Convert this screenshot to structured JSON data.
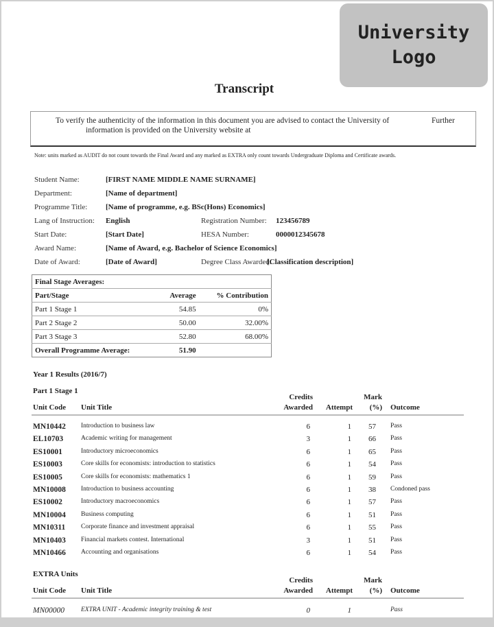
{
  "logo": {
    "line1": "University",
    "line2": "Logo"
  },
  "title": "Transcript",
  "verify": {
    "line1": "To verify the authenticity of the information in this document you are advised to contact the University of",
    "further": "Further",
    "line2": "information is provided on the University website at"
  },
  "note": "Note: units marked as AUDIT do not count towards the Final Award and any marked as EXTRA only count towards Undergraduate Diploma and Certificate awards.",
  "student": {
    "name_label": "Student Name:",
    "name": "[FIRST NAME MIDDLE NAME SURNAME]",
    "dept_label": "Department:",
    "dept": "[Name of department]",
    "prog_label": "Programme Title:",
    "prog": "[Name of programme, e.g. BSc(Hons) Economics]",
    "lang_label": "Lang of Instruction:",
    "lang": "English",
    "reg_label": "Registration Number:",
    "reg": "123456789",
    "start_label": "Start Date:",
    "start": "[Start Date]",
    "hesa_label": "HESA Number:",
    "hesa": "0000012345678",
    "award_label": "Award Name:",
    "award": "[Name of Award, e.g. Bachelor of Science Economics]",
    "date_label": "Date of Award:",
    "date": "[Date of Award]",
    "class_label": "Degree Class Awarded:",
    "class": "[Classification description]"
  },
  "averages": {
    "heading": "Final Stage Averages:",
    "headers": [
      "Part/Stage",
      "Average",
      "% Contribution"
    ],
    "rows": [
      [
        "Part 1 Stage 1",
        "54.85",
        "0%"
      ],
      [
        "Part 2 Stage 2",
        "50.00",
        "32.00%"
      ],
      [
        "Part 3 Stage 3",
        "52.80",
        "68.00%"
      ]
    ],
    "overall_label": "Overall Programme Average:",
    "overall": "51.90"
  },
  "year_heading": "Year  1 Results (2016/7)",
  "headers": {
    "code": "Unit Code",
    "title": "Unit Title",
    "credits1": "Credits",
    "credits2": "Awarded",
    "attempt": "Attempt",
    "mark1": "Mark",
    "mark2": "(%)",
    "outcome": "Outcome"
  },
  "stage1": {
    "heading": "Part 1 Stage 1",
    "units": [
      [
        "MN10442",
        "Introduction to business law",
        "6",
        "1",
        "57",
        "Pass"
      ],
      [
        "EL10703",
        "Academic writing for management",
        "3",
        "1",
        "66",
        "Pass"
      ],
      [
        "ES10001",
        "Introductory microeconomics",
        "6",
        "1",
        "65",
        "Pass"
      ],
      [
        "ES10003",
        "Core skills for economists: introduction to statistics",
        "6",
        "1",
        "54",
        "Pass"
      ],
      [
        "ES10005",
        "Core skills for economists: mathematics 1",
        "6",
        "1",
        "59",
        "Pass"
      ],
      [
        "MN10008",
        "Introduction to business accounting",
        "6",
        "1",
        "38",
        "Condoned pass"
      ],
      [
        "ES10002",
        "Introductory macroeconomics",
        "6",
        "1",
        "57",
        "Pass"
      ],
      [
        "MN10004",
        "Business computing",
        "6",
        "1",
        "51",
        "Pass"
      ],
      [
        "MN10311",
        "Corporate finance and investment appraisal",
        "6",
        "1",
        "55",
        "Pass"
      ],
      [
        "MN10403",
        "Financial markets contest. International",
        "3",
        "1",
        "51",
        "Pass"
      ],
      [
        "MN10466",
        "Accounting and organisations",
        "6",
        "1",
        "54",
        "Pass"
      ]
    ]
  },
  "extra": {
    "heading": "EXTRA Units",
    "units": [
      [
        "MN00000",
        "EXTRA UNIT - Academic integrity training & test",
        "0",
        "1",
        "",
        "Pass"
      ]
    ]
  }
}
